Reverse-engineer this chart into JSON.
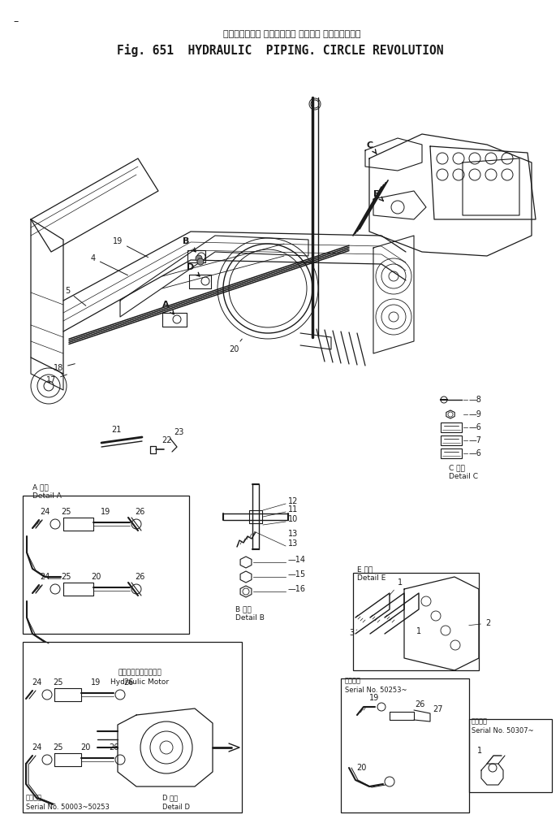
{
  "title_jp": "ハイドロリック パイピング． サークル リボルーション",
  "title_en": "Fig. 651  HYDRAULIC  PIPING. CIRCLE REVOLUTION",
  "bg_color": "#ffffff",
  "line_color": "#1a1a1a",
  "fig_width": 6.9,
  "fig_height": 10.08,
  "dpi": 100,
  "bottom_left_jp": "適用号機",
  "bottom_left_serial": "Serial No. 50003~50253",
  "bottom_left_detail_jp": "D 詳細",
  "bottom_left_detail_en": "Detail D",
  "bottom_mid_jp": "適用号機",
  "bottom_mid_serial": "Serial No. 50253~",
  "bottom_right_apply": "適用号機",
  "bottom_right_serial": "Serial No. 50307~",
  "detail_c_jp": "C 詳細",
  "detail_c_en": "Detail C",
  "detail_a_jp": "A 詳細",
  "detail_a_en": "Detail A",
  "detail_b_jp": "B 詳細",
  "detail_b_en": "Detail B",
  "detail_e_jp": "E 詳細",
  "detail_e_en": "Detail E",
  "hydraulic_motor_jp": "ハイドロリックモータ",
  "hydraulic_motor_en": "Hydraulic Motor"
}
